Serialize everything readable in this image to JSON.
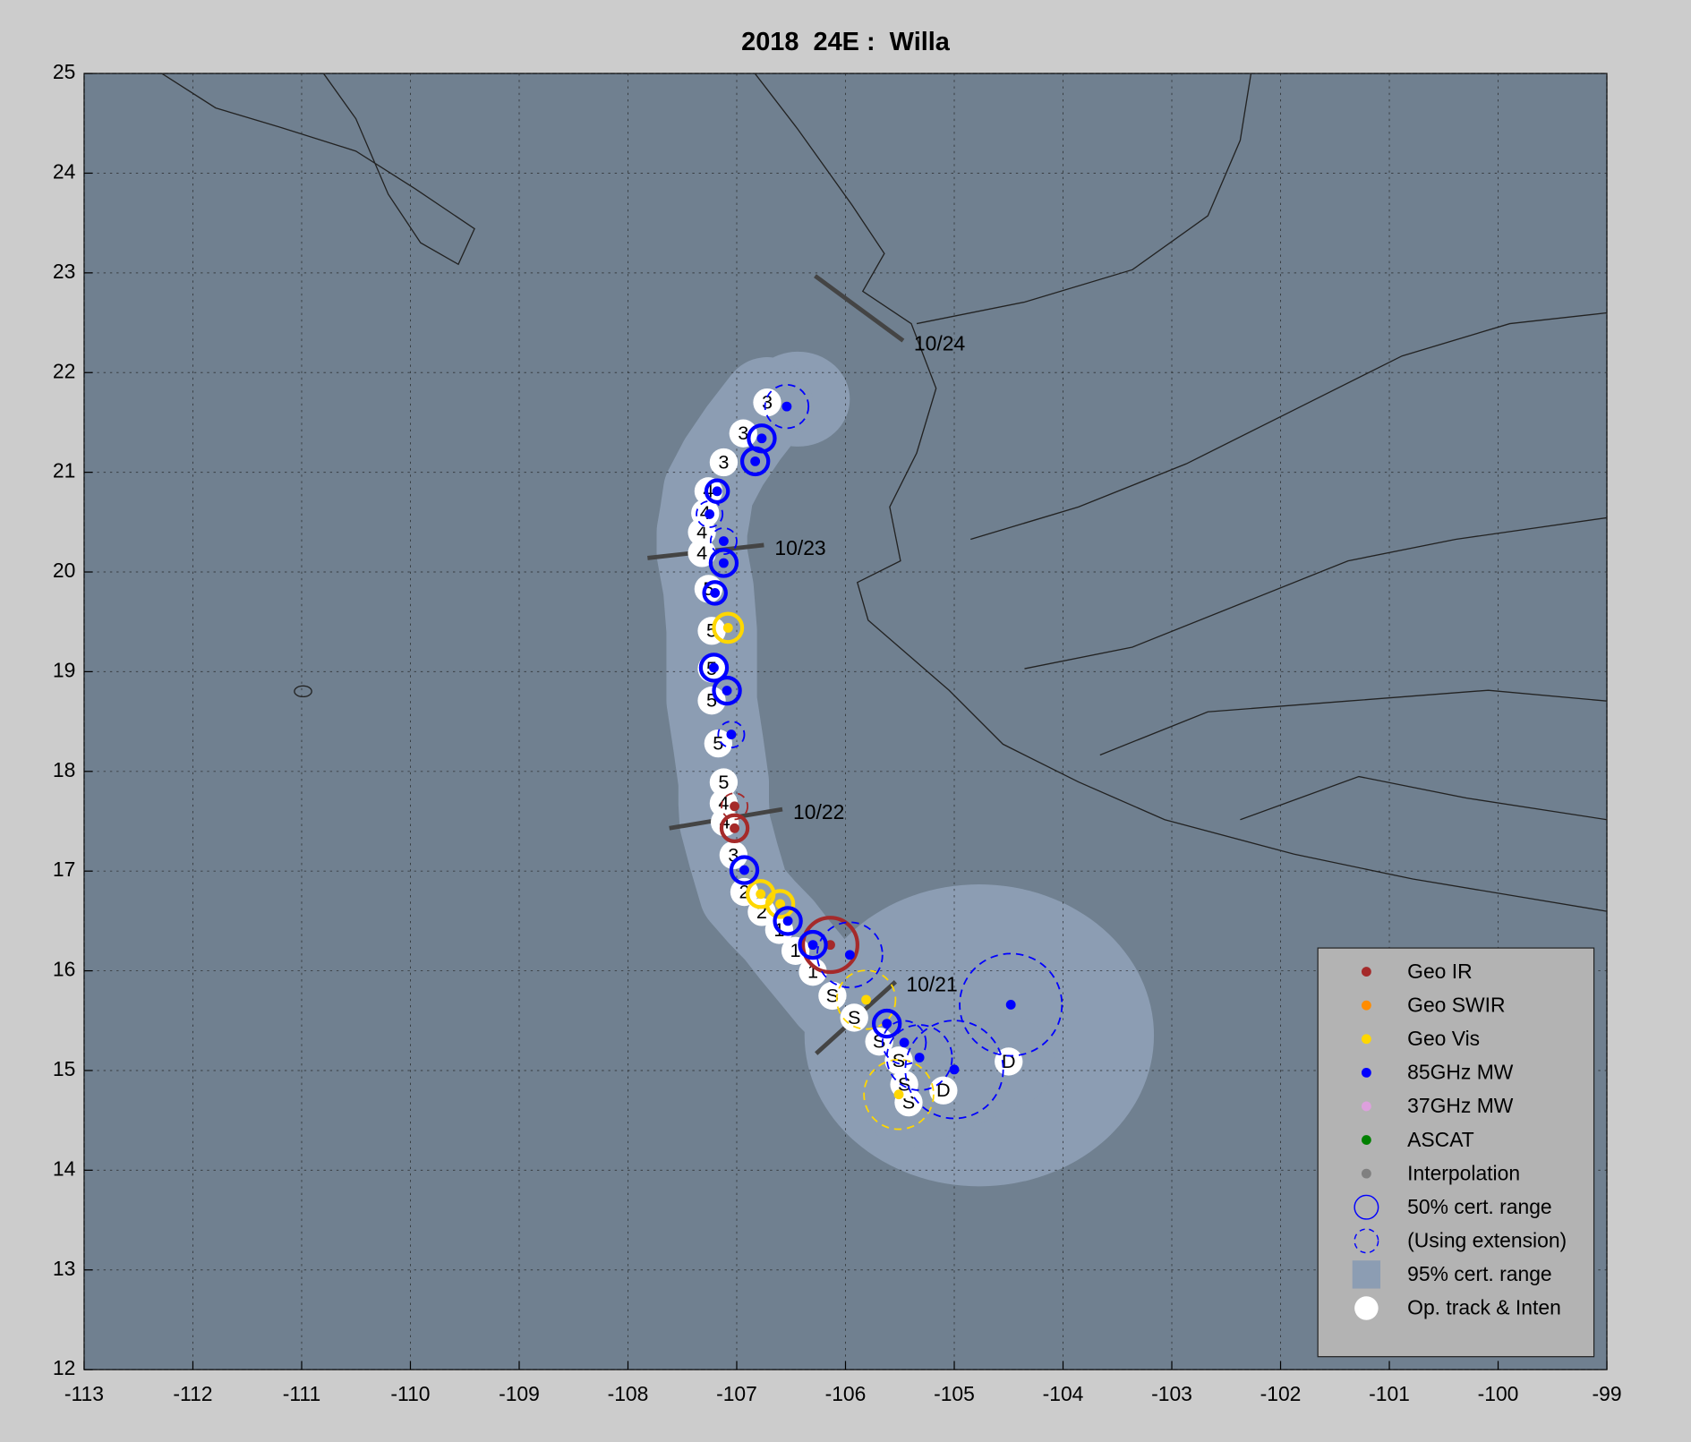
{
  "chart_data": {
    "type": "track",
    "title": "2018  24E :  Willa",
    "xlim": [
      -113,
      -99
    ],
    "ylim": [
      12,
      25
    ],
    "xticks": [
      -113,
      -112,
      -111,
      -110,
      -109,
      -108,
      -107,
      -106,
      -105,
      -104,
      -103,
      -102,
      -101,
      -100,
      -99
    ],
    "yticks": [
      12,
      13,
      14,
      15,
      16,
      17,
      18,
      19,
      20,
      21,
      22,
      23,
      24,
      25
    ],
    "grid": true,
    "legend": "lower right",
    "track": {
      "name": "Op. track & Inten",
      "x": [
        -104.5,
        -105.1,
        -105.42,
        -105.46,
        -105.51,
        -105.69,
        -105.92,
        -106.12,
        -106.3,
        -106.46,
        -106.61,
        -106.77,
        -106.93,
        -107.03,
        -107.11,
        -107.12,
        -107.12,
        -107.17,
        -107.23,
        -107.23,
        -107.23,
        -107.26,
        -107.32,
        -107.32,
        -107.29,
        -107.26,
        -107.12,
        -106.94,
        -106.72
      ],
      "y": [
        15.09,
        14.8,
        14.68,
        14.86,
        15.1,
        15.29,
        15.53,
        15.75,
        15.99,
        16.2,
        16.41,
        16.59,
        16.79,
        17.16,
        17.49,
        17.68,
        17.89,
        18.28,
        18.71,
        19.03,
        19.41,
        19.83,
        20.19,
        20.4,
        20.59,
        20.81,
        21.1,
        21.39,
        21.7
      ],
      "labels": [
        "D",
        "D",
        "S",
        "S",
        "S",
        "S",
        "S",
        "S",
        "1",
        "1",
        "1",
        "2",
        "2",
        "3",
        "4",
        "4",
        "5",
        "5",
        "5",
        "5",
        "5",
        "5",
        "4",
        "4",
        "4",
        "4",
        "3",
        "3",
        "3"
      ]
    },
    "series": [
      {
        "name": "Geo IR",
        "color": "#a52a2a",
        "x": [
          -107.02,
          -107.02,
          -106.14
        ],
        "y": [
          17.65,
          17.43,
          16.26
        ],
        "radius": [
          0.12,
          0.12,
          0.25
        ],
        "extension": [
          true,
          false,
          false
        ]
      },
      {
        "name": "Geo SWIR",
        "color": "#ff8c00",
        "x": [],
        "y": [],
        "radius": [],
        "extension": []
      },
      {
        "name": "Geo Vis",
        "color": "#ffd700",
        "x": [
          -107.08,
          -106.78,
          -106.6,
          -105.81,
          -105.51
        ],
        "y": [
          19.44,
          16.77,
          16.67,
          15.71,
          14.76
        ],
        "radius": [
          0.13,
          0.12,
          0.12,
          0.27,
          0.32
        ],
        "extension": [
          false,
          false,
          false,
          true,
          true
        ]
      },
      {
        "name": "85GHz MW",
        "color": "#0000ff",
        "x": [
          -106.54,
          -106.77,
          -106.83,
          -107.18,
          -107.25,
          -107.12,
          -107.12,
          -107.2,
          -107.21,
          -107.09,
          -107.05,
          -106.93,
          -106.53,
          -106.3,
          -105.96,
          -105.62,
          -105.46,
          -105.32,
          -105.0,
          -104.48
        ],
        "y": [
          21.66,
          21.34,
          21.11,
          20.81,
          20.58,
          20.31,
          20.09,
          19.79,
          19.04,
          18.81,
          18.37,
          17.01,
          16.5,
          16.26,
          16.16,
          15.47,
          15.28,
          15.13,
          15.01,
          15.66
        ],
        "radius": [
          0.2,
          0.12,
          0.12,
          0.1,
          0.12,
          0.12,
          0.12,
          0.1,
          0.12,
          0.12,
          0.12,
          0.12,
          0.12,
          0.12,
          0.3,
          0.12,
          0.2,
          0.3,
          0.45,
          0.47
        ],
        "extension": [
          true,
          false,
          false,
          false,
          true,
          true,
          false,
          false,
          false,
          false,
          true,
          false,
          false,
          false,
          true,
          false,
          true,
          true,
          true,
          true
        ]
      },
      {
        "name": "37GHz MW",
        "color": "#dda0dd",
        "x": [],
        "y": [],
        "radius": [],
        "extension": []
      },
      {
        "name": "ASCAT",
        "color": "#008000",
        "x": [],
        "y": [],
        "radius": [],
        "extension": []
      },
      {
        "name": "Interpolation",
        "color": "#808080",
        "x": [],
        "y": [],
        "radius": [],
        "extension": []
      }
    ],
    "date_marks": [
      {
        "label": "10/24",
        "x": [
          -106.28,
          -105.47
        ],
        "y": [
          22.97,
          22.32
        ]
      },
      {
        "label": "10/23",
        "x": [
          -107.82,
          -106.75
        ],
        "y": [
          20.14,
          20.27
        ]
      },
      {
        "label": "10/22",
        "x": [
          -107.62,
          -106.58
        ],
        "y": [
          17.43,
          17.62
        ]
      },
      {
        "label": "10/21",
        "x": [
          -106.27,
          -105.54
        ],
        "y": [
          15.17,
          15.89
        ]
      }
    ],
    "cert_50_label": "50% cert. range",
    "cert_ext_label": "(Using extension)",
    "cert_95_label": "95% cert. range"
  }
}
